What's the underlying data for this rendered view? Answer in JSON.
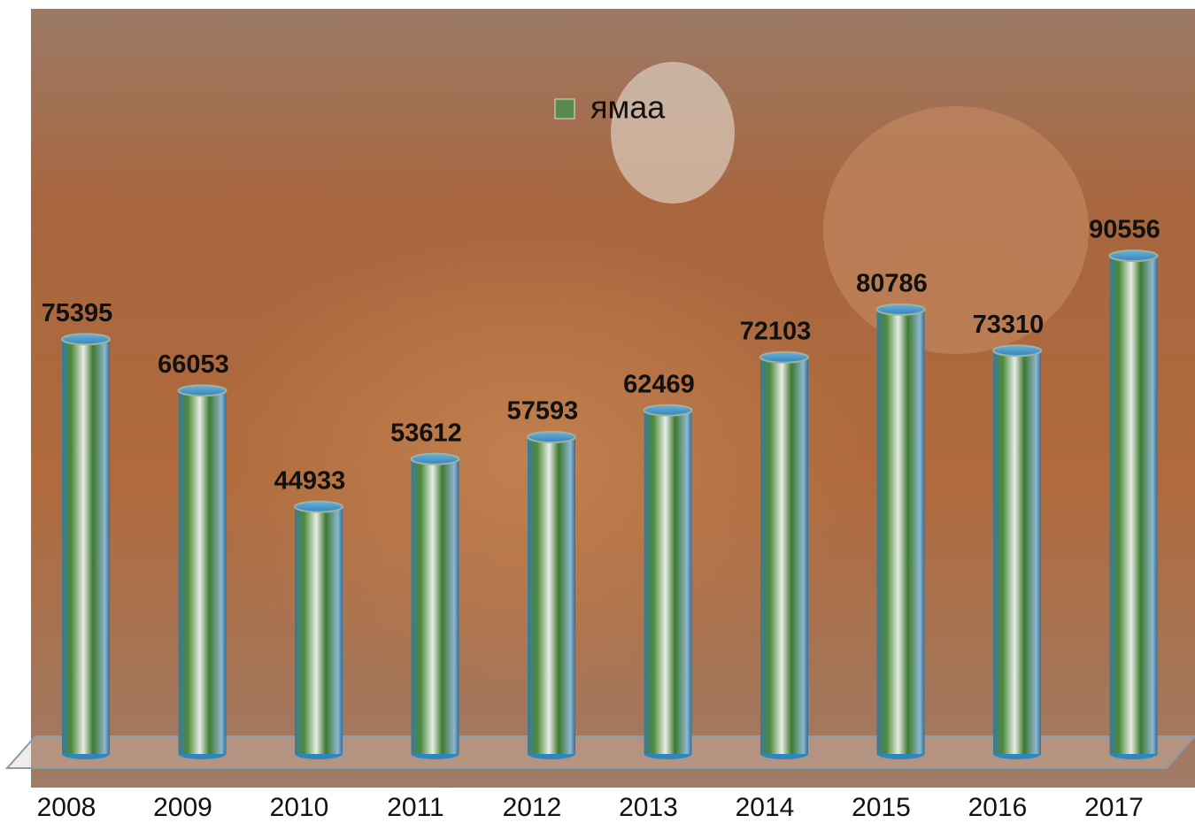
{
  "chart_data": {
    "type": "bar",
    "categories": [
      "2008",
      "2009",
      "2010",
      "2011",
      "2012",
      "2013",
      "2014",
      "2015",
      "2016",
      "2017"
    ],
    "series": [
      {
        "name": "ямаа",
        "values": [
          75395,
          66053,
          44933,
          53612,
          57593,
          62469,
          72103,
          80786,
          73310,
          90556
        ]
      }
    ]
  }
}
